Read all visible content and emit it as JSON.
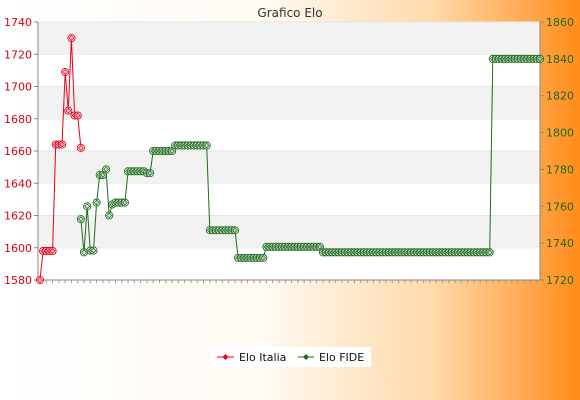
{
  "chart_data": {
    "type": "line",
    "title": "Grafico Elo",
    "y_left": {
      "min": 1580,
      "max": 1740,
      "ticks": [
        1580,
        1600,
        1620,
        1640,
        1660,
        1680,
        1700,
        1720,
        1740
      ]
    },
    "y_right": {
      "min": 1720,
      "max": 1860,
      "ticks": [
        1720,
        1740,
        1760,
        1780,
        1800,
        1820,
        1840,
        1860
      ]
    },
    "grid": "horizontal bands",
    "legend_position": "bottom",
    "legend": [
      "Elo Italia",
      "Elo FIDE"
    ],
    "x_count": 160,
    "series": [
      {
        "name": "Elo Italia",
        "axis": "left",
        "color": "#e8001c",
        "marker": "diamond",
        "points": [
          [
            0,
            1580
          ],
          [
            1,
            1598
          ],
          [
            2,
            1598
          ],
          [
            3,
            1598
          ],
          [
            4,
            1598
          ],
          [
            5,
            1664
          ],
          [
            6,
            1664
          ],
          [
            7,
            1664
          ],
          [
            8,
            1709
          ],
          [
            9,
            1685
          ],
          [
            10,
            1730
          ],
          [
            11,
            1682
          ],
          [
            12,
            1682
          ],
          [
            13,
            1662
          ]
        ]
      },
      {
        "name": "Elo FIDE",
        "axis": "right",
        "color": "#1e6b1e",
        "marker": "circle",
        "runs": [
          {
            "from": 13,
            "to": 13,
            "value": 1753
          },
          {
            "from": 14,
            "to": 14,
            "value": 1735
          },
          {
            "from": 15,
            "to": 15,
            "value": 1760
          },
          {
            "from": 16,
            "to": 17,
            "value": 1736
          },
          {
            "from": 18,
            "to": 18,
            "value": 1762
          },
          {
            "from": 19,
            "to": 20,
            "value": 1777
          },
          {
            "from": 21,
            "to": 21,
            "value": 1780
          },
          {
            "from": 22,
            "to": 22,
            "value": 1755
          },
          {
            "from": 23,
            "to": 23,
            "value": 1761
          },
          {
            "from": 24,
            "to": 27,
            "value": 1762
          },
          {
            "from": 28,
            "to": 33,
            "value": 1779
          },
          {
            "from": 34,
            "to": 35,
            "value": 1778
          },
          {
            "from": 36,
            "to": 42,
            "value": 1790
          },
          {
            "from": 43,
            "to": 53,
            "value": 1793
          },
          {
            "from": 54,
            "to": 62,
            "value": 1747
          },
          {
            "from": 63,
            "to": 71,
            "value": 1732
          },
          {
            "from": 72,
            "to": 89,
            "value": 1738
          },
          {
            "from": 90,
            "to": 143,
            "value": 1735
          },
          {
            "from": 144,
            "to": 159,
            "value": 1840
          }
        ]
      }
    ]
  }
}
